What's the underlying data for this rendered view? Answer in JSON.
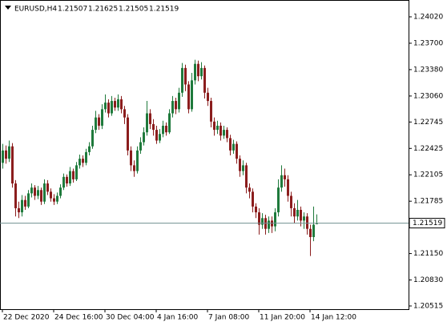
{
  "chart_data": {
    "type": "candlestick",
    "symbol": "EURUSD,H4",
    "categories": [
      "22 Dec 2020",
      null,
      null,
      null,
      null,
      null,
      null,
      null,
      null,
      null,
      null,
      null,
      null,
      null,
      null,
      null,
      "24 Dec 16:00",
      null,
      null,
      null,
      null,
      null,
      null,
      null,
      null,
      null,
      null,
      null,
      null,
      null,
      null,
      null,
      "30 Dec 04:00",
      null,
      null,
      null,
      null,
      null,
      null,
      null,
      null,
      null,
      null,
      null,
      null,
      null,
      null,
      null,
      "4 Jan 16:00",
      null,
      null,
      null,
      null,
      null,
      null,
      null,
      null,
      null,
      null,
      null,
      null,
      null,
      null,
      null,
      "7 Jan 08:00",
      null,
      null,
      null,
      null,
      null,
      null,
      null,
      null,
      null,
      null,
      null,
      null,
      null,
      null,
      null,
      "11 Jan 20:00",
      null,
      null,
      null,
      null,
      null,
      null,
      null,
      null,
      null,
      null,
      null,
      null,
      null,
      null,
      null,
      "14 Jan 12:00",
      null,
      null
    ],
    "open": [
      1.2225,
      1.224,
      1.223,
      1.2245,
      1.22,
      1.217,
      1.2165,
      1.218,
      1.2172,
      1.2188,
      1.2195,
      1.2185,
      1.2192,
      1.2178,
      1.22,
      1.219,
      1.2182,
      1.2178,
      1.2185,
      1.2195,
      1.2208,
      1.22,
      1.2215,
      1.2205,
      1.2222,
      1.223,
      1.2225,
      1.2238,
      1.2245,
      1.2265,
      1.228,
      1.227,
      1.229,
      1.2298,
      1.2285,
      1.23,
      1.2292,
      1.2302,
      1.229,
      1.228,
      1.224,
      1.2222,
      1.2215,
      1.224,
      1.225,
      1.2262,
      1.2285,
      1.2272,
      1.2265,
      1.2252,
      1.226,
      1.227,
      1.2262,
      1.2285,
      1.23,
      1.229,
      1.231,
      1.234,
      1.232,
      1.229,
      1.2325,
      1.2345,
      1.233,
      1.234,
      1.231,
      1.23,
      1.2275,
      1.2265,
      1.227,
      1.2258,
      1.2265,
      1.2255,
      1.224,
      1.2248,
      1.223,
      1.2215,
      1.2222,
      1.2195,
      1.219,
      1.2172,
      1.2165,
      1.215,
      1.2158,
      1.2145,
      1.2155,
      1.2148,
      1.2165,
      1.2195,
      1.221,
      1.2205,
      1.2185,
      1.217,
      1.216,
      1.2168,
      1.2155,
      1.216,
      1.2145,
      1.2135,
      1.21507
    ],
    "high": [
      1.2248,
      1.2246,
      1.2252,
      1.2249,
      1.2204,
      1.2178,
      1.2186,
      1.2185,
      1.2192,
      1.22,
      1.2198,
      1.2197,
      1.2195,
      1.2205,
      1.2204,
      1.2194,
      1.2187,
      1.2189,
      1.2199,
      1.2212,
      1.2211,
      1.222,
      1.2218,
      1.2226,
      1.2235,
      1.2234,
      1.2242,
      1.225,
      1.227,
      1.2288,
      1.2284,
      1.2296,
      1.2308,
      1.2302,
      1.2306,
      1.2304,
      1.2308,
      1.2306,
      1.2294,
      1.2284,
      1.2245,
      1.2228,
      1.2245,
      1.2256,
      1.2268,
      1.23,
      1.229,
      1.2278,
      1.227,
      1.2266,
      1.2276,
      1.2274,
      1.229,
      1.2306,
      1.2304,
      1.2316,
      1.2346,
      1.2344,
      1.2324,
      1.2334,
      1.235,
      1.2349,
      1.2347,
      1.2343,
      1.2316,
      1.2304,
      1.228,
      1.2276,
      1.2274,
      1.227,
      1.2268,
      1.2259,
      1.2253,
      1.2251,
      1.2234,
      1.2228,
      1.2225,
      1.22,
      1.2194,
      1.2176,
      1.217,
      1.2164,
      1.2162,
      1.216,
      1.216,
      1.217,
      1.2205,
      1.2222,
      1.2218,
      1.221,
      1.219,
      1.2176,
      1.218,
      1.2172,
      1.2165,
      1.2164,
      1.215,
      1.2172,
      1.21625
    ],
    "low": [
      1.2218,
      1.2224,
      1.2226,
      1.2195,
      1.216,
      1.2158,
      1.216,
      1.2168,
      1.217,
      1.2183,
      1.218,
      1.2181,
      1.2174,
      1.2175,
      1.2186,
      1.2178,
      1.2174,
      1.2175,
      1.2182,
      1.2192,
      1.2196,
      1.2197,
      1.2201,
      1.2203,
      1.2218,
      1.222,
      1.2222,
      1.2234,
      1.2242,
      1.2261,
      1.2265,
      1.2266,
      1.2286,
      1.228,
      1.2282,
      1.2288,
      1.2288,
      1.2285,
      1.2272,
      1.2234,
      1.2215,
      1.2208,
      1.2212,
      1.2236,
      1.2246,
      1.2258,
      1.2266,
      1.2258,
      1.2248,
      1.2249,
      1.2256,
      1.2258,
      1.226,
      1.228,
      1.2284,
      1.2286,
      1.2305,
      1.2312,
      1.2285,
      1.2287,
      1.232,
      1.2324,
      1.2326,
      1.2303,
      1.2294,
      1.2268,
      1.2258,
      1.226,
      1.2252,
      1.2254,
      1.225,
      1.2234,
      1.2236,
      1.2224,
      1.2208,
      1.221,
      1.2188,
      1.2182,
      1.2165,
      1.2158,
      1.2138,
      1.2145,
      1.2138,
      1.214,
      1.214,
      1.2142,
      1.216,
      1.219,
      1.2196,
      1.2178,
      1.216,
      1.2152,
      1.2155,
      1.2148,
      1.2145,
      1.2138,
      1.2112,
      1.213,
      1.21505
    ],
    "close": [
      1.224,
      1.223,
      1.2245,
      1.22,
      1.217,
      1.2165,
      1.218,
      1.2172,
      1.2188,
      1.2195,
      1.2185,
      1.2192,
      1.2178,
      1.22,
      1.219,
      1.2182,
      1.2178,
      1.2185,
      1.2195,
      1.2208,
      1.22,
      1.2215,
      1.2205,
      1.2222,
      1.223,
      1.2225,
      1.2238,
      1.2245,
      1.2265,
      1.228,
      1.227,
      1.229,
      1.2298,
      1.2285,
      1.23,
      1.2292,
      1.2302,
      1.229,
      1.228,
      1.224,
      1.2222,
      1.2215,
      1.224,
      1.225,
      1.2262,
      1.2285,
      1.2272,
      1.2265,
      1.2252,
      1.226,
      1.227,
      1.2262,
      1.2285,
      1.23,
      1.229,
      1.231,
      1.234,
      1.232,
      1.229,
      1.2325,
      1.2345,
      1.233,
      1.234,
      1.231,
      1.23,
      1.2275,
      1.2265,
      1.227,
      1.2258,
      1.2265,
      1.2255,
      1.224,
      1.2248,
      1.223,
      1.2215,
      1.2222,
      1.2195,
      1.219,
      1.2172,
      1.2165,
      1.215,
      1.2158,
      1.2145,
      1.2155,
      1.2148,
      1.2165,
      1.2195,
      1.221,
      1.2205,
      1.2185,
      1.217,
      1.216,
      1.2168,
      1.2155,
      1.216,
      1.2145,
      1.2135,
      1.215,
      1.21519
    ],
    "up_color": "#1f7a3c",
    "down_color": "#8b1d1d",
    "price_line_color": "#6f9090",
    "ylim": [
      1.20476,
      1.24224
    ],
    "yticks": [
      {
        "value": 1.2402,
        "label": "1.24020"
      },
      {
        "value": 1.237,
        "label": "1.23700"
      },
      {
        "value": 1.2338,
        "label": "1.23380"
      },
      {
        "value": 1.2306,
        "label": "1.23060"
      },
      {
        "value": 1.22745,
        "label": "1.22745"
      },
      {
        "value": 1.22425,
        "label": "1.22425"
      },
      {
        "value": 1.22105,
        "label": "1.22105"
      },
      {
        "value": 1.21785,
        "label": "1.21785"
      },
      {
        "value": 1.2115,
        "label": "1.21150"
      },
      {
        "value": 1.2083,
        "label": "1.20830"
      },
      {
        "value": 1.20515,
        "label": "1.20515"
      }
    ]
  }
}
